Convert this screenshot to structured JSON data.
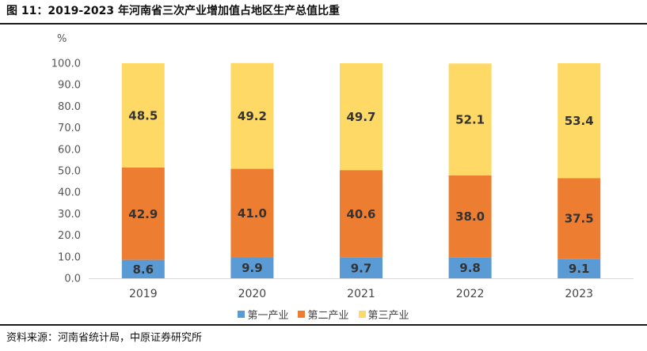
{
  "title": "图 11：2019-2023 年河南省三次产业增加值占地区生产总值比重",
  "source": "资料来源：河南省统计局，中原证券研究所",
  "colors": {
    "primary": "#5B9BD5",
    "secondary": "#ED7D31",
    "tertiary": "#FFD966",
    "axis": "#d9d9d9"
  },
  "chart_data": {
    "type": "bar",
    "stacked": true,
    "unit": "%",
    "categories": [
      "2019",
      "2020",
      "2021",
      "2022",
      "2023"
    ],
    "series": [
      {
        "name": "第一产业",
        "values": [
          8.6,
          9.9,
          9.7,
          9.8,
          9.1
        ],
        "color": "#5B9BD5"
      },
      {
        "name": "第二产业",
        "values": [
          42.9,
          41.0,
          40.6,
          38.0,
          37.5
        ],
        "color": "#ED7D31"
      },
      {
        "name": "第三产业",
        "values": [
          48.5,
          49.2,
          49.7,
          52.1,
          53.4
        ],
        "color": "#FFD966"
      }
    ],
    "ylim": [
      0,
      100
    ],
    "yticks": [
      "0.0",
      "10.0",
      "20.0",
      "30.0",
      "40.0",
      "50.0",
      "60.0",
      "70.0",
      "80.0",
      "90.0",
      "100.0"
    ],
    "legend_position": "bottom"
  }
}
